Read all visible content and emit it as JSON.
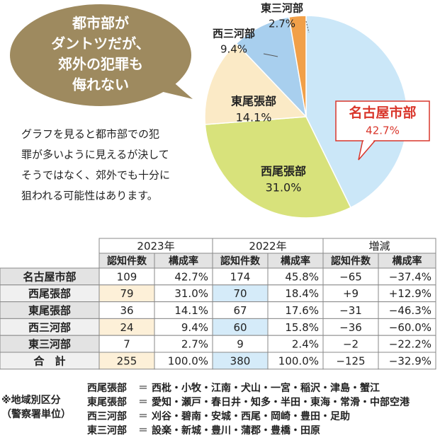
{
  "bubble": [
    "都市部が",
    "ダントツだが、",
    "郊外の犯罪も",
    "侮れない"
  ],
  "description": [
    "グラフを見ると都市部での犯",
    "罪が多いように見えるが決して",
    "そうではなく、郊外でも十分に",
    "狙われる可能性はあります。"
  ],
  "chart_data": {
    "type": "pie",
    "categories": [
      "名古屋市部",
      "西尾張部",
      "東尾張部",
      "西三河部",
      "東三河部"
    ],
    "values": [
      42.7,
      31.0,
      14.1,
      9.4,
      2.7
    ],
    "value_labels": [
      "42.7%",
      "31.0%",
      "14.1%",
      "9.4%",
      "2.7%"
    ],
    "colors": [
      "#cbe7f8",
      "#d8e27b",
      "#fbeac6",
      "#a8cfee",
      "#f1a049"
    ]
  },
  "table": {
    "header_groups": [
      "2023年",
      "2022年",
      "増減"
    ],
    "subheaders": [
      "認知件数",
      "構成率",
      "認知件数",
      "構成率",
      "認知件数",
      "構成率"
    ],
    "rows": [
      [
        "名古屋市部",
        "109",
        "42.7%",
        "174",
        "45.8%",
        "−65",
        "−37.4%"
      ],
      [
        "西尾張部",
        "79",
        "31.0%",
        "70",
        "18.4%",
        "+9",
        "+12.9%"
      ],
      [
        "東尾張部",
        "36",
        "14.1%",
        "67",
        "17.6%",
        "−31",
        "−46.3%"
      ],
      [
        "西三河部",
        "24",
        "9.4%",
        "60",
        "15.8%",
        "−36",
        "−60.0%"
      ],
      [
        "東三河部",
        "7",
        "2.7%",
        "9",
        "2.4%",
        "−2",
        "−22.2%"
      ],
      [
        "合　計",
        "255",
        "100.0%",
        "380",
        "100.0%",
        "−125",
        "−32.9%"
      ]
    ]
  },
  "notes": {
    "label": [
      "※地域別区分",
      "（警察署単位）"
    ],
    "lines": [
      [
        "西尾張部",
        "＝",
        "西枇・小牧・江南・犬山・一宮・稲沢・津島・蟹江"
      ],
      [
        "東尾張部",
        "＝",
        "愛知・瀬戸・春日井・知多・半田・東海・常滑・中部空港"
      ],
      [
        "西三河部",
        "＝",
        "刈谷・碧南・安城・西尾・岡崎・豊田・足助"
      ],
      [
        "東三河部",
        "＝",
        "設楽・新城・豊川・蒲郡・豊橋・田原"
      ]
    ]
  }
}
